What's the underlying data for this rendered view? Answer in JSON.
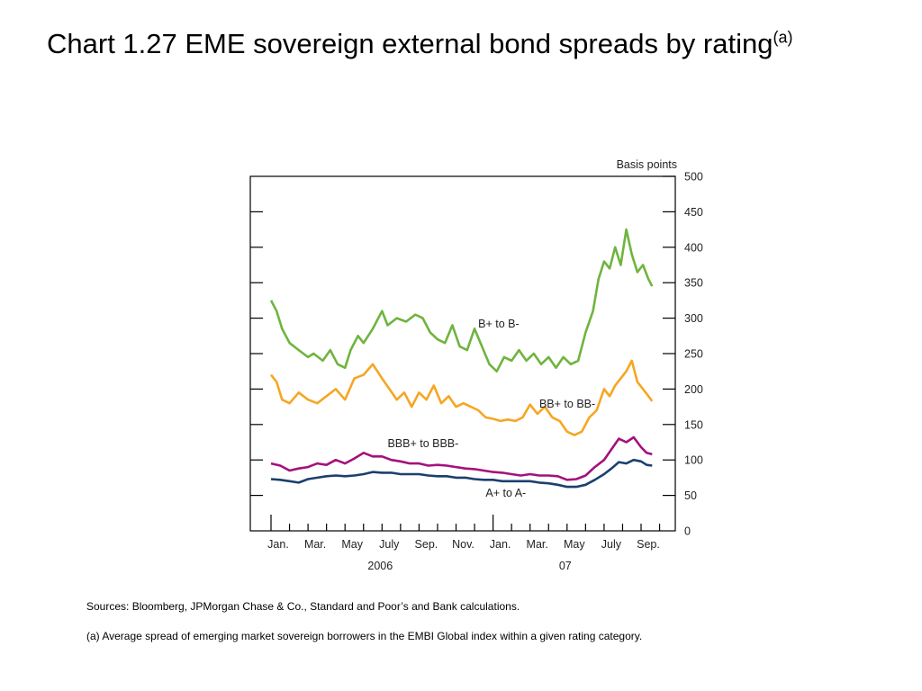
{
  "slide": {
    "title": "Chart 1.27  EME sovereign external bond spreads by rating",
    "title_superscript": "(a)",
    "sources": "Sources:  Bloomberg, JPMorgan Chase & Co., Standard and Poor’s and Bank calculations.",
    "footnote": "(a)  Average spread of emerging market sovereign borrowers in the EMBI Global index within a given rating category."
  },
  "chart_data": {
    "type": "line",
    "title": "Chart 1.27  EME sovereign external bond spreads by rating",
    "ylabel": "Basis points",
    "xlabel": "",
    "ylim": [
      0,
      500
    ],
    "yticks": [
      0,
      50,
      100,
      150,
      200,
      250,
      300,
      350,
      400,
      450,
      500
    ],
    "grid": false,
    "xlim": [
      0,
      21
    ],
    "x_unit": "months since Jan. 2006",
    "x_ticks": [
      {
        "x": 0,
        "label": "Jan."
      },
      {
        "x": 2,
        "label": "Mar."
      },
      {
        "x": 4,
        "label": "May"
      },
      {
        "x": 6,
        "label": "July"
      },
      {
        "x": 8,
        "label": "Sep."
      },
      {
        "x": 10,
        "label": "Nov."
      },
      {
        "x": 12,
        "label": "Jan."
      },
      {
        "x": 14,
        "label": "Mar."
      },
      {
        "x": 16,
        "label": "May"
      },
      {
        "x": 18,
        "label": "July"
      },
      {
        "x": 20,
        "label": "Sep."
      }
    ],
    "year_labels": [
      {
        "x": 6,
        "label": "2006"
      },
      {
        "x": 16,
        "label": "07"
      }
    ],
    "series": [
      {
        "name": "B+ to B-",
        "color": "#6fb43f",
        "label_at": {
          "x": 11.2,
          "y": 287
        },
        "x": [
          0,
          0.3,
          0.6,
          1.0,
          1.5,
          2.0,
          2.3,
          2.8,
          3.2,
          3.6,
          4.0,
          4.3,
          4.7,
          5.0,
          5.5,
          6.0,
          6.3,
          6.8,
          7.3,
          7.8,
          8.2,
          8.6,
          9.0,
          9.4,
          9.8,
          10.2,
          10.6,
          11.0,
          11.4,
          11.8,
          12.2,
          12.6,
          13.0,
          13.4,
          13.8,
          14.2,
          14.6,
          15.0,
          15.4,
          15.8,
          16.2,
          16.6,
          17.0,
          17.4,
          17.7,
          18.0,
          18.3,
          18.6,
          18.9,
          19.2,
          19.5,
          19.8,
          20.1,
          20.4,
          20.6
        ],
        "values": [
          325,
          310,
          285,
          265,
          255,
          245,
          250,
          240,
          255,
          235,
          230,
          255,
          275,
          265,
          285,
          310,
          290,
          300,
          295,
          305,
          300,
          280,
          270,
          265,
          290,
          260,
          255,
          285,
          260,
          235,
          225,
          245,
          240,
          255,
          240,
          250,
          235,
          245,
          230,
          245,
          235,
          240,
          280,
          310,
          355,
          380,
          370,
          400,
          375,
          425,
          390,
          365,
          375,
          355,
          345
        ]
      },
      {
        "name": "BB+ to BB-",
        "color": "#f6a623",
        "label_at": {
          "x": 14.5,
          "y": 174
        },
        "x": [
          0,
          0.3,
          0.6,
          1.0,
          1.5,
          2.0,
          2.5,
          3.0,
          3.5,
          4.0,
          4.5,
          5.0,
          5.5,
          6.0,
          6.4,
          6.8,
          7.2,
          7.6,
          8.0,
          8.4,
          8.8,
          9.2,
          9.6,
          10.0,
          10.4,
          10.8,
          11.2,
          11.6,
          12.0,
          12.4,
          12.8,
          13.2,
          13.6,
          14.0,
          14.4,
          14.8,
          15.2,
          15.6,
          16.0,
          16.4,
          16.8,
          17.2,
          17.6,
          18.0,
          18.3,
          18.6,
          18.9,
          19.2,
          19.5,
          19.8,
          20.1,
          20.4,
          20.6
        ],
        "values": [
          220,
          210,
          185,
          180,
          195,
          185,
          180,
          190,
          200,
          185,
          215,
          220,
          235,
          215,
          200,
          185,
          195,
          175,
          195,
          185,
          205,
          180,
          190,
          175,
          180,
          175,
          170,
          160,
          158,
          155,
          157,
          155,
          160,
          178,
          165,
          175,
          160,
          155,
          140,
          135,
          140,
          160,
          170,
          200,
          190,
          205,
          215,
          225,
          240,
          210,
          200,
          190,
          183
        ]
      },
      {
        "name": "BBB+ to BBB-",
        "color": "#a4117c",
        "label_at": {
          "x": 6.3,
          "y": 118
        },
        "x": [
          0,
          0.5,
          1.0,
          1.5,
          2.0,
          2.5,
          3.0,
          3.5,
          4.0,
          4.5,
          5.0,
          5.5,
          6.0,
          6.5,
          7.0,
          7.5,
          8.0,
          8.5,
          9.0,
          9.5,
          10.0,
          10.5,
          11.0,
          11.5,
          12.0,
          12.5,
          13.0,
          13.5,
          14.0,
          14.5,
          15.0,
          15.5,
          16.0,
          16.5,
          17.0,
          17.5,
          18.0,
          18.4,
          18.8,
          19.2,
          19.6,
          20.0,
          20.3,
          20.6
        ],
        "values": [
          95,
          92,
          85,
          88,
          90,
          95,
          93,
          100,
          95,
          102,
          110,
          105,
          105,
          100,
          98,
          95,
          95,
          92,
          93,
          92,
          90,
          88,
          87,
          85,
          83,
          82,
          80,
          78,
          80,
          78,
          78,
          77,
          72,
          73,
          78,
          90,
          100,
          115,
          130,
          125,
          132,
          118,
          110,
          108
        ]
      },
      {
        "name": "A+ to A-",
        "color": "#1c3f6e",
        "label_at": {
          "x": 11.6,
          "y": 48
        },
        "x": [
          0,
          0.5,
          1.0,
          1.5,
          2.0,
          2.5,
          3.0,
          3.5,
          4.0,
          4.5,
          5.0,
          5.5,
          6.0,
          6.5,
          7.0,
          7.5,
          8.0,
          8.5,
          9.0,
          9.5,
          10.0,
          10.5,
          11.0,
          11.5,
          12.0,
          12.5,
          13.0,
          13.5,
          14.0,
          14.5,
          15.0,
          15.5,
          16.0,
          16.5,
          17.0,
          17.5,
          18.0,
          18.4,
          18.8,
          19.2,
          19.6,
          20.0,
          20.3,
          20.6
        ],
        "values": [
          73,
          72,
          70,
          68,
          73,
          75,
          77,
          78,
          77,
          78,
          80,
          83,
          82,
          82,
          80,
          80,
          80,
          78,
          77,
          77,
          75,
          75,
          73,
          72,
          72,
          70,
          70,
          70,
          70,
          68,
          67,
          65,
          62,
          62,
          65,
          72,
          80,
          88,
          97,
          95,
          100,
          98,
          93,
          92
        ]
      }
    ]
  }
}
